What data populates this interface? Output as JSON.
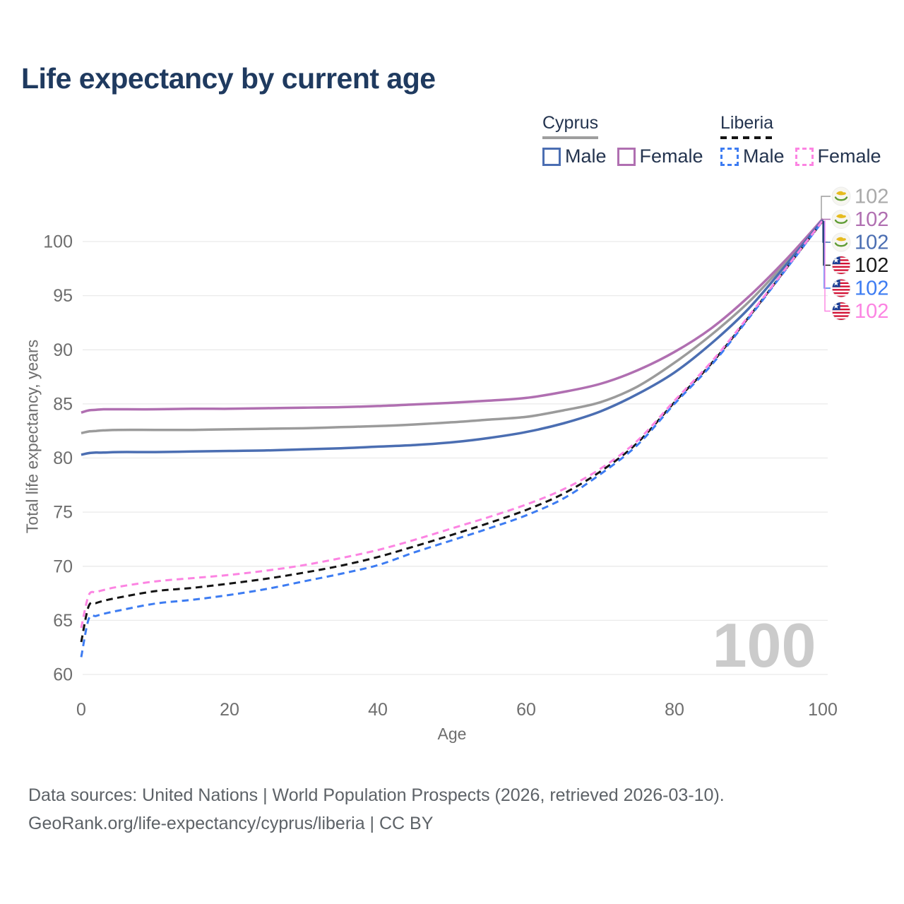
{
  "title": "Life expectancy by current age",
  "legend": {
    "groups": [
      {
        "country": "Cyprus",
        "style": "solid",
        "underline_color": "#9e9e9e",
        "items": [
          {
            "label": "Male",
            "color": "#4b6eb2"
          },
          {
            "label": "Female",
            "color": "#b06fb1"
          }
        ]
      },
      {
        "country": "Liberia",
        "style": "dashed",
        "underline_color": "#141414",
        "items": [
          {
            "label": "Male",
            "color": "#3d7cf2"
          },
          {
            "label": "Female",
            "color": "#fc84e2"
          }
        ]
      }
    ]
  },
  "axes": {
    "y_label": "Total life expectancy, years",
    "x_label": "Age",
    "y_ticks": [
      60,
      65,
      70,
      75,
      80,
      85,
      90,
      95,
      100
    ],
    "x_ticks": [
      0,
      20,
      40,
      60,
      80,
      100
    ],
    "x_range": [
      0,
      100
    ],
    "y_range": [
      60,
      100
    ]
  },
  "watermark": "100",
  "colors": {
    "title": "#1f3a5f",
    "legend_text": "#24344f",
    "axis_text": "#6e6e6e",
    "grid": "#eaeaea",
    "watermark": "#cbcbcb",
    "footer": "#5d6267",
    "end_label_gray": "#a9a9a9"
  },
  "chart_data": {
    "type": "line",
    "x_label": "Age",
    "y_label": "Total life expectancy, years",
    "x": [
      0,
      1,
      2,
      3,
      5,
      10,
      15,
      20,
      25,
      30,
      35,
      40,
      45,
      50,
      55,
      60,
      65,
      70,
      75,
      80,
      85,
      90,
      95,
      100
    ],
    "series": [
      {
        "name": "Cyprus",
        "country": "Cyprus",
        "sex": "total",
        "color": "#9b9b9b",
        "dash": false,
        "flag": "cyprus",
        "end_label": "102",
        "label_row": 0,
        "end_label_color": "#a9a9a9",
        "values": [
          82.3,
          82.45,
          82.5,
          82.55,
          82.6,
          82.6,
          82.6,
          82.65,
          82.7,
          82.75,
          82.85,
          82.95,
          83.1,
          83.3,
          83.55,
          83.8,
          84.4,
          85.15,
          86.6,
          88.8,
          91.4,
          94.4,
          98.05,
          102.05
        ]
      },
      {
        "name": "Cyprus Female",
        "country": "Cyprus",
        "sex": "female",
        "color": "#b06fb1",
        "dash": false,
        "flag": "cyprus",
        "end_label": "102",
        "label_row": 1,
        "end_label_color": "#b06fb1",
        "values": [
          84.2,
          84.4,
          84.45,
          84.5,
          84.5,
          84.5,
          84.55,
          84.55,
          84.6,
          84.65,
          84.7,
          84.8,
          84.95,
          85.1,
          85.3,
          85.55,
          86.1,
          86.85,
          88.1,
          89.8,
          92.0,
          94.9,
          98.3,
          102.1
        ]
      },
      {
        "name": "Cyprus Male",
        "country": "Cyprus",
        "sex": "male",
        "color": "#4b6eb2",
        "dash": false,
        "flag": "cyprus",
        "end_label": "102",
        "label_row": 2,
        "end_label_color": "#4b6eb2",
        "values": [
          80.3,
          80.45,
          80.5,
          80.5,
          80.55,
          80.55,
          80.6,
          80.65,
          80.7,
          80.8,
          80.9,
          81.05,
          81.2,
          81.45,
          81.85,
          82.4,
          83.2,
          84.3,
          85.9,
          87.9,
          90.6,
          93.8,
          97.8,
          102.0
        ]
      },
      {
        "name": "Liberia",
        "country": "Liberia",
        "sex": "total",
        "color": "#141414",
        "dash": true,
        "flag": "liberia",
        "end_label": "102",
        "label_row": 3,
        "end_label_color": "#1a1a1a",
        "values": [
          63.0,
          66.3,
          66.6,
          66.8,
          67.1,
          67.7,
          68.0,
          68.4,
          68.85,
          69.4,
          70.05,
          70.85,
          71.85,
          72.9,
          74.0,
          75.2,
          76.7,
          78.75,
          81.4,
          85.15,
          88.75,
          93.0,
          97.45,
          101.9
        ]
      },
      {
        "name": "Liberia Male",
        "country": "Liberia",
        "sex": "male",
        "color": "#3d7cf2",
        "dash": true,
        "flag": "liberia",
        "end_label": "102",
        "label_row": 4,
        "end_label_color": "#3d7cf2",
        "values": [
          61.6,
          65.1,
          65.4,
          65.6,
          65.9,
          66.55,
          66.9,
          67.35,
          67.9,
          68.6,
          69.3,
          70.1,
          71.3,
          72.4,
          73.5,
          74.7,
          76.25,
          78.5,
          81.2,
          85.0,
          88.6,
          92.9,
          97.4,
          101.9
        ]
      },
      {
        "name": "Liberia Female",
        "country": "Liberia",
        "sex": "female",
        "color": "#fc84e2",
        "dash": true,
        "flag": "liberia",
        "end_label": "102",
        "label_row": 5,
        "end_label_color": "#fc84e2",
        "values": [
          64.3,
          67.3,
          67.6,
          67.8,
          68.1,
          68.6,
          68.9,
          69.2,
          69.6,
          70.1,
          70.75,
          71.5,
          72.45,
          73.5,
          74.55,
          75.7,
          77.1,
          79.0,
          81.6,
          85.3,
          88.9,
          93.1,
          97.5,
          101.95
        ]
      }
    ]
  },
  "footer": {
    "line1": "Data sources: United Nations | World Population Prospects (2026, retrieved 2026-03-10).",
    "line2": "GeoRank.org/life-expectancy/cyprus/liberia | CC BY"
  }
}
